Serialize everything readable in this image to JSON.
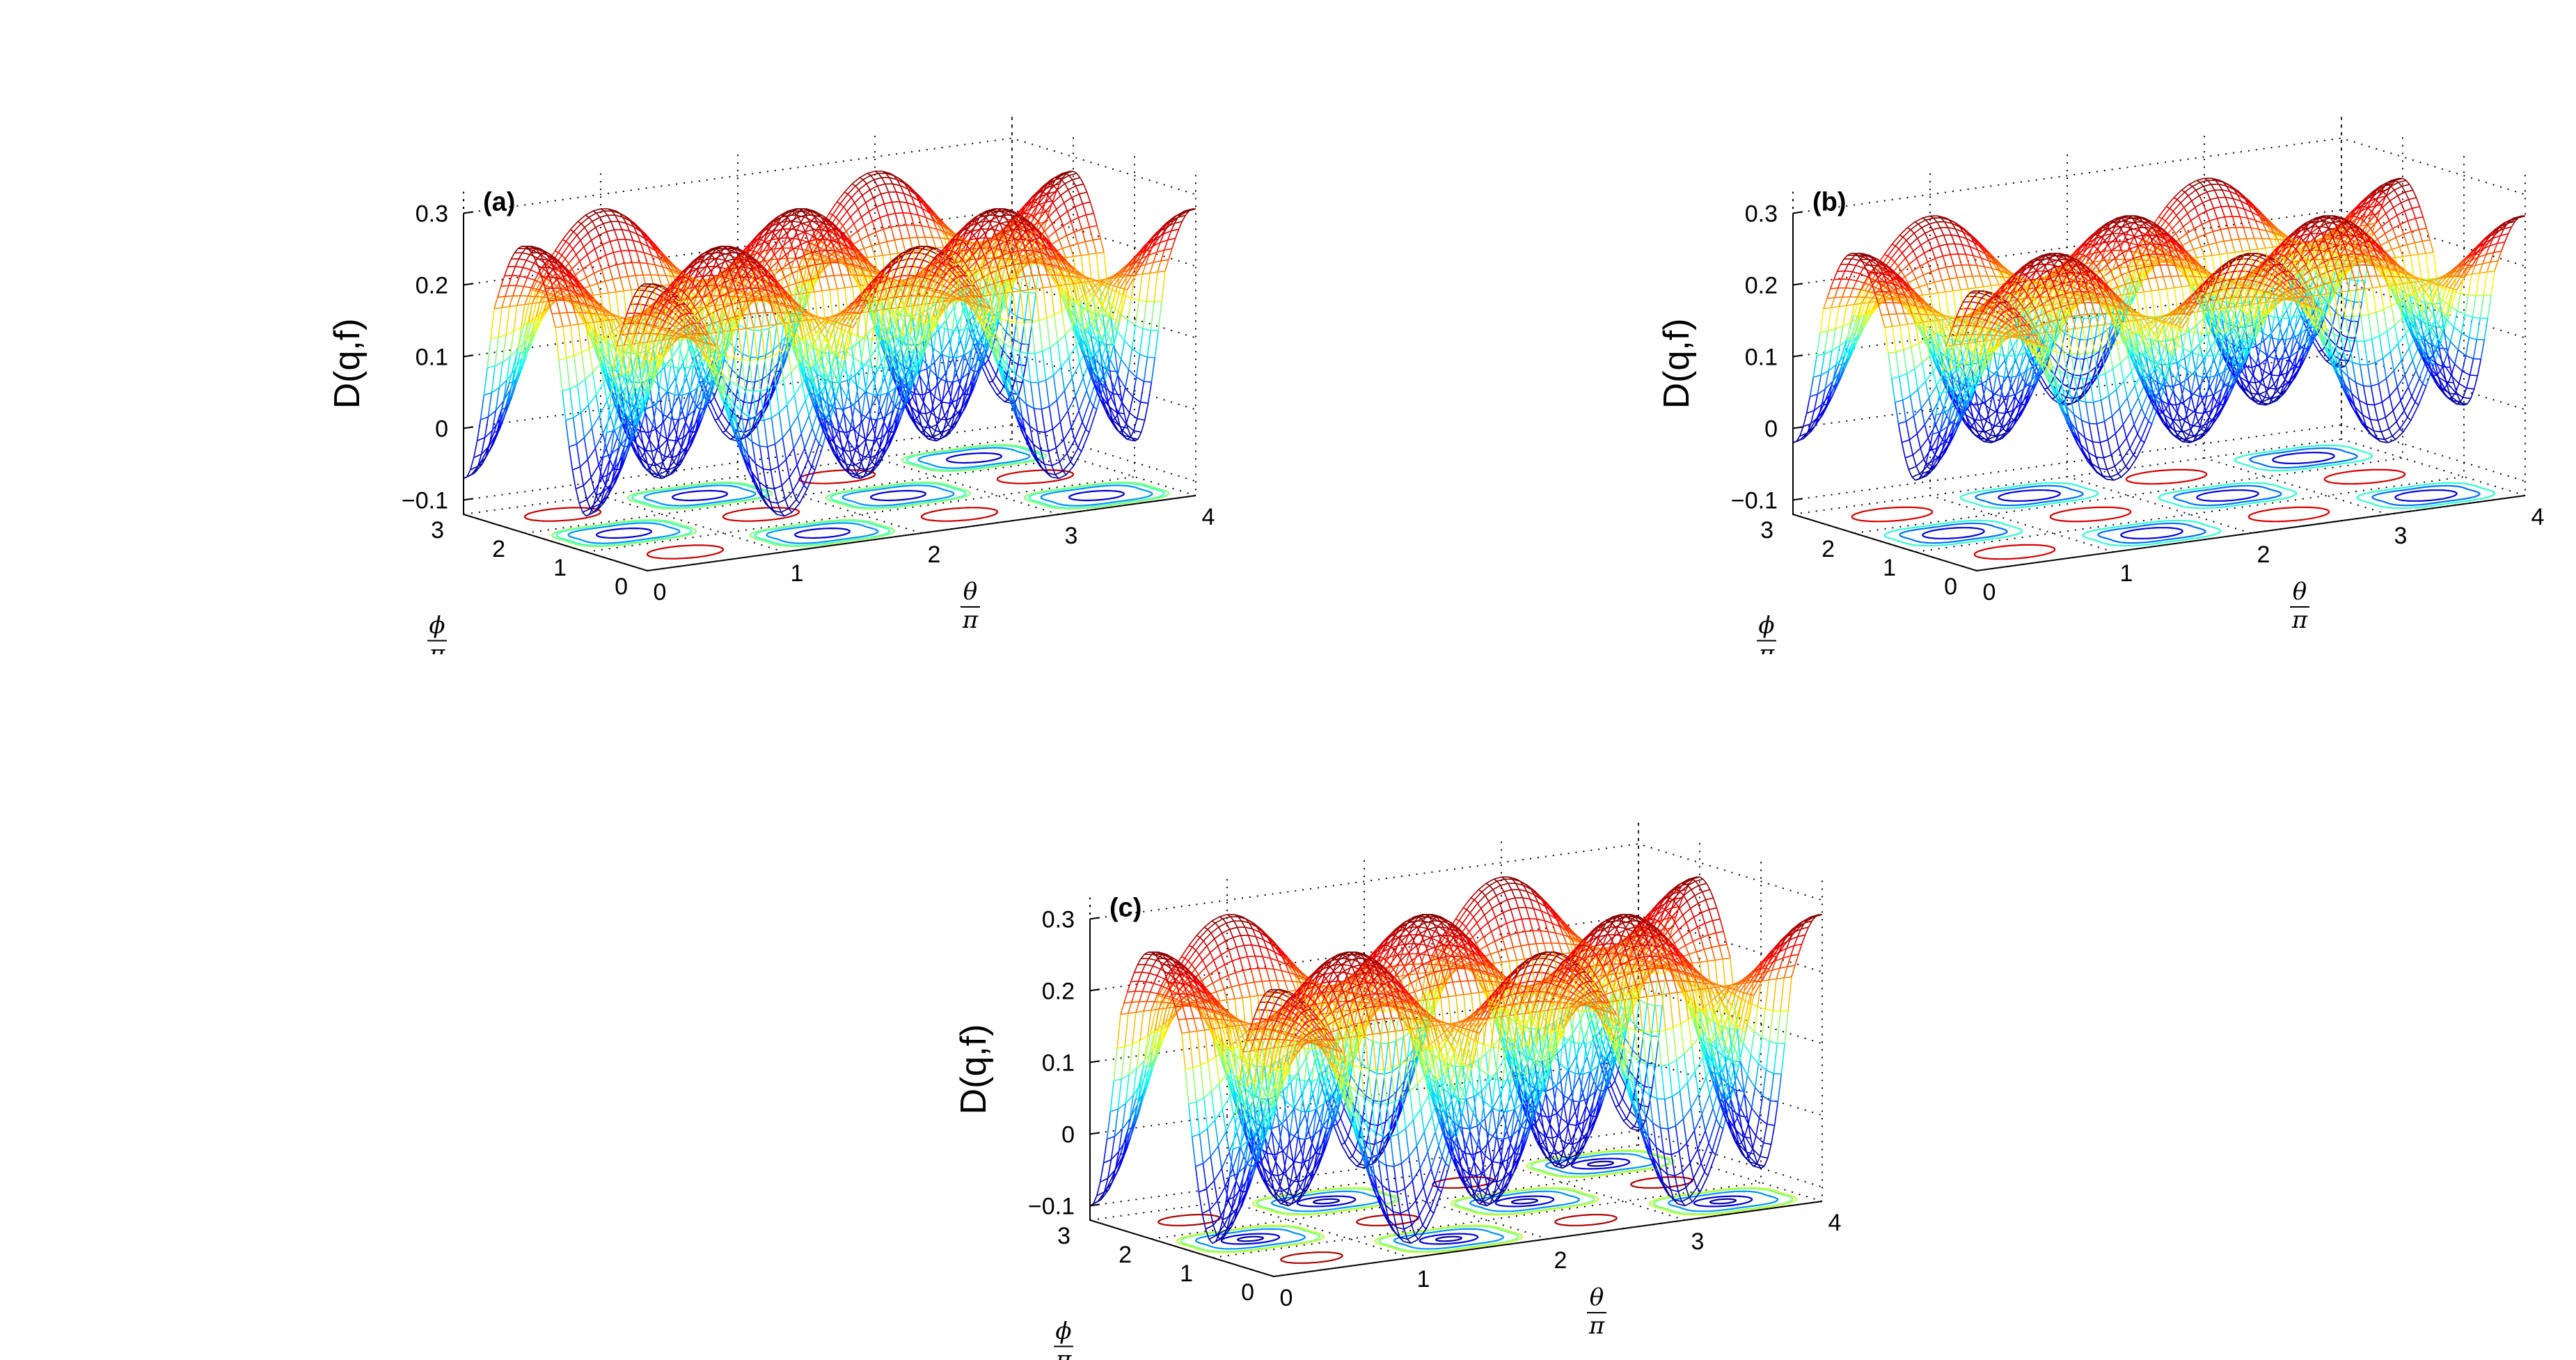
{
  "chart_data": [
    {
      "type": "surface",
      "panel_label": "(a)",
      "zlabel": "D(q,f)",
      "xlabel": {
        "num": "θ",
        "den": "π"
      },
      "ylabel": {
        "num": "ϕ",
        "den": "π"
      },
      "x_ticks": [
        "0",
        "1",
        "2",
        "3",
        "4"
      ],
      "y_ticks": [
        "0",
        "1",
        "2",
        "3"
      ],
      "z_ticks": [
        "−0.1",
        "0",
        "0.1",
        "0.2",
        "0.3"
      ],
      "xlim": [
        0,
        4
      ],
      "ylim": [
        0,
        3
      ],
      "zlim": [
        -0.12,
        0.3
      ],
      "surface": {
        "base": 0.18,
        "amp_up": 0.1,
        "amp_down": 0.25,
        "pattern": "cos(πθ)cos(πϕ)"
      },
      "contour_levels": [
        -0.07,
        -0.03,
        0.05,
        0.1,
        0.12,
        0.25
      ],
      "colormap": [
        "#00008f",
        "#0000ff",
        "#00ffff",
        "#ffff00",
        "#ff0000",
        "#800000"
      ],
      "grid": true
    },
    {
      "type": "surface",
      "panel_label": "(b)",
      "zlabel": "D(q,f)",
      "xlabel": {
        "num": "θ",
        "den": "π"
      },
      "ylabel": {
        "num": "ϕ",
        "den": "π"
      },
      "x_ticks": [
        "0",
        "1",
        "2",
        "3",
        "4"
      ],
      "y_ticks": [
        "0",
        "1",
        "2",
        "3"
      ],
      "z_ticks": [
        "−0.1",
        "0",
        "0.1",
        "0.2",
        "0.3"
      ],
      "xlim": [
        0,
        4
      ],
      "ylim": [
        0,
        3
      ],
      "zlim": [
        -0.12,
        0.3
      ],
      "surface": {
        "base": 0.18,
        "amp_up": 0.09,
        "amp_down": 0.2,
        "pattern": "cos(πθ)cos(πϕ)"
      },
      "contour_levels": [
        -0.02,
        0.02,
        0.07,
        0.12,
        0.24
      ],
      "colormap": [
        "#00008f",
        "#0000ff",
        "#00ffff",
        "#ffff00",
        "#ff0000",
        "#800000"
      ],
      "grid": true
    },
    {
      "type": "surface",
      "panel_label": "(c)",
      "zlabel": "D(q,f)",
      "xlabel": {
        "num": "θ",
        "den": "π"
      },
      "ylabel": {
        "num": "ϕ",
        "den": "π"
      },
      "x_ticks": [
        "0",
        "1",
        "2",
        "3",
        "4"
      ],
      "y_ticks": [
        "0",
        "1",
        "2",
        "3"
      ],
      "z_ticks": [
        "−0.1",
        "0",
        "0.1",
        "0.2",
        "0.3"
      ],
      "xlim": [
        0,
        4
      ],
      "ylim": [
        0,
        3
      ],
      "zlim": [
        -0.12,
        0.3
      ],
      "surface": {
        "base": 0.18,
        "amp_up": 0.1,
        "amp_down": 0.28,
        "pattern": "cos(πθ)cos(πϕ)"
      },
      "contour_levels": [
        -0.09,
        -0.05,
        0.03,
        0.1,
        0.12,
        0.26
      ],
      "colormap": [
        "#00008f",
        "#0000ff",
        "#00ffff",
        "#ffff00",
        "#ff0000",
        "#800000"
      ],
      "grid": true
    }
  ]
}
